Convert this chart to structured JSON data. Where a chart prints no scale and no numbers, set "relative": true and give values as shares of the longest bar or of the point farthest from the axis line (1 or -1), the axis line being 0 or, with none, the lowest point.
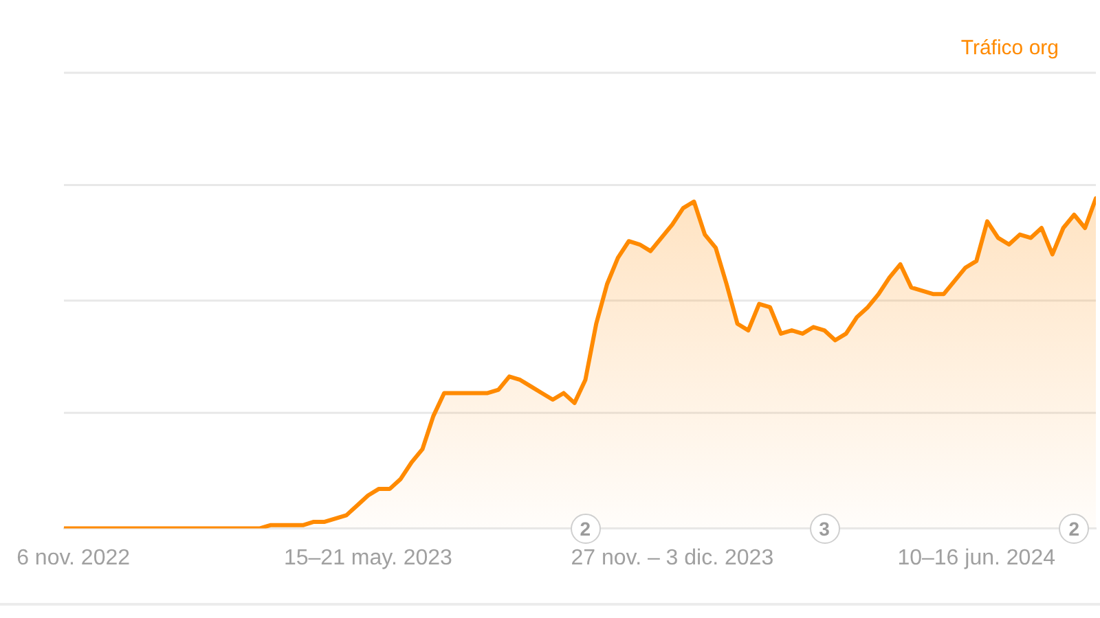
{
  "chart_data": {
    "type": "area",
    "relative": true,
    "legend": "top right",
    "marker": "none",
    "xlim": [
      "2022-10-31",
      "2024-08-26"
    ],
    "xticks": [
      {
        "value": "2022-11-06",
        "label": "6 nov. 2022"
      },
      {
        "value": "2023-05-15",
        "label": "15–21 may. 2023"
      },
      {
        "value": "2023-11-27",
        "label": "27 nov. – 3 dic. 2023"
      },
      {
        "value": "2024-06-10",
        "label": "10–16 jun. 2024"
      }
    ],
    "ref_lines": [
      {
        "axis": "y",
        "value": 0.35,
        "color": "#e8e8e8"
      },
      {
        "axis": "y",
        "value": 0.69,
        "color": "#e8e8e8"
      },
      {
        "axis": "y",
        "value": 1.04,
        "color": "#e8e8e8"
      },
      {
        "axis": "y",
        "value": 1.38,
        "color": "#e8e8e8"
      }
    ],
    "x": [
      "2022-10-31",
      "2022-11-07",
      "2022-11-14",
      "2022-11-21",
      "2022-11-28",
      "2022-12-05",
      "2022-12-12",
      "2022-12-19",
      "2022-12-26",
      "2023-01-02",
      "2023-01-09",
      "2023-01-16",
      "2023-01-23",
      "2023-01-30",
      "2023-02-06",
      "2023-02-13",
      "2023-02-20",
      "2023-02-27",
      "2023-03-06",
      "2023-03-13",
      "2023-03-20",
      "2023-03-27",
      "2023-04-03",
      "2023-04-10",
      "2023-04-17",
      "2023-04-24",
      "2023-05-01",
      "2023-05-08",
      "2023-05-15",
      "2023-05-22",
      "2023-05-29",
      "2023-06-05",
      "2023-06-12",
      "2023-06-19",
      "2023-06-26",
      "2023-07-03",
      "2023-07-10",
      "2023-07-17",
      "2023-07-24",
      "2023-07-31",
      "2023-08-07",
      "2023-08-14",
      "2023-08-21",
      "2023-08-28",
      "2023-09-04",
      "2023-09-11",
      "2023-09-18",
      "2023-09-25",
      "2023-10-02",
      "2023-10-09",
      "2023-10-16",
      "2023-10-23",
      "2023-10-30",
      "2023-11-06",
      "2023-11-13",
      "2023-11-20",
      "2023-11-27",
      "2023-12-04",
      "2023-12-11",
      "2023-12-18",
      "2023-12-25",
      "2024-01-01",
      "2024-01-08",
      "2024-01-15",
      "2024-01-22",
      "2024-01-29",
      "2024-02-05",
      "2024-02-12",
      "2024-02-19",
      "2024-02-26",
      "2024-03-04",
      "2024-03-11",
      "2024-03-18",
      "2024-03-25",
      "2024-04-01",
      "2024-04-08",
      "2024-04-15",
      "2024-04-22",
      "2024-04-29",
      "2024-05-06",
      "2024-05-13",
      "2024-05-20",
      "2024-05-27",
      "2024-06-03",
      "2024-06-10",
      "2024-06-17",
      "2024-06-24",
      "2024-07-01",
      "2024-07-08",
      "2024-07-15",
      "2024-07-22",
      "2024-07-29",
      "2024-08-05",
      "2024-08-12",
      "2024-08-19",
      "2024-08-26"
    ],
    "series": [
      {
        "name": "Tráfico org",
        "color": "#ff8a00",
        "values": [
          0,
          0,
          0,
          0,
          0,
          0,
          0,
          0,
          0,
          0,
          0,
          0,
          0,
          0,
          0,
          0,
          0,
          0,
          0,
          0.01,
          0.01,
          0.01,
          0.01,
          0.02,
          0.02,
          0.03,
          0.04,
          0.07,
          0.1,
          0.12,
          0.12,
          0.15,
          0.2,
          0.24,
          0.34,
          0.41,
          0.41,
          0.41,
          0.41,
          0.41,
          0.42,
          0.46,
          0.45,
          0.43,
          0.41,
          0.39,
          0.41,
          0.38,
          0.45,
          0.62,
          0.74,
          0.82,
          0.87,
          0.86,
          0.84,
          0.88,
          0.92,
          0.97,
          0.99,
          0.89,
          0.85,
          0.74,
          0.62,
          0.6,
          0.68,
          0.67,
          0.59,
          0.6,
          0.59,
          0.61,
          0.6,
          0.57,
          0.59,
          0.64,
          0.67,
          0.71,
          0.76,
          0.8,
          0.73,
          0.72,
          0.71,
          0.71,
          0.75,
          0.79,
          0.81,
          0.93,
          0.88,
          0.86,
          0.89,
          0.88,
          0.91,
          0.83,
          0.91,
          0.95,
          0.91,
          1
        ]
      }
    ],
    "annotations": [
      {
        "text": "2",
        "x": "2023-10-02"
      },
      {
        "text": "3",
        "x": "2024-03-04"
      },
      {
        "text": "2",
        "x": "2024-08-12"
      }
    ]
  }
}
